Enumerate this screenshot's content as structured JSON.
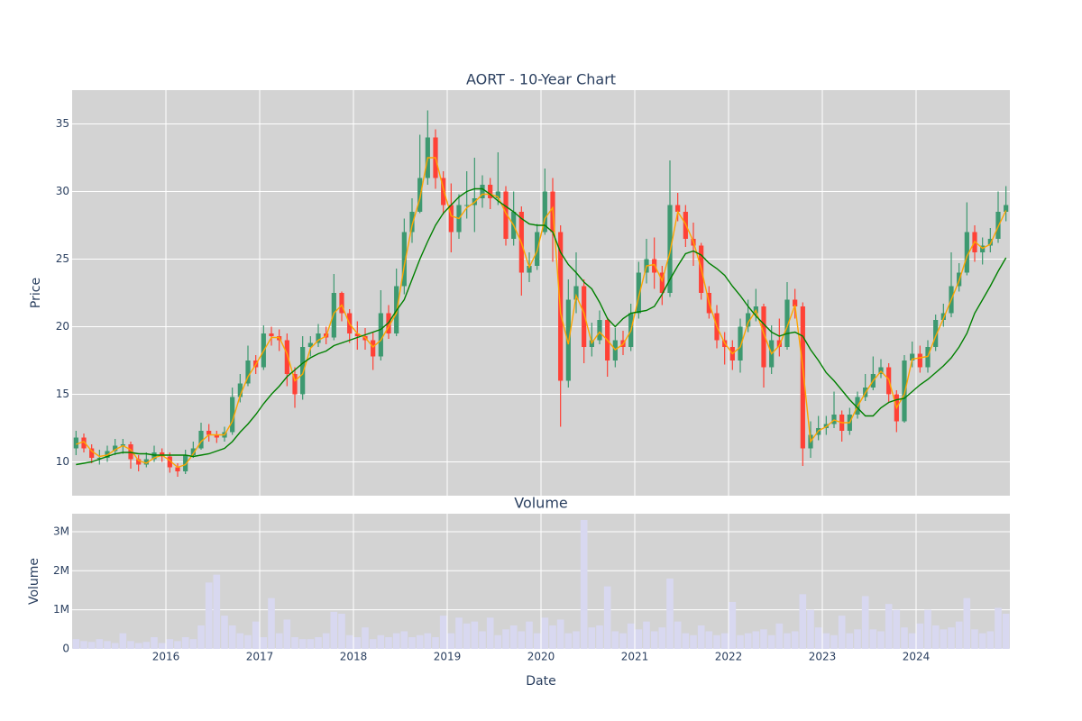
{
  "chart_data": [
    {
      "type": "candlestick",
      "title": "AORT - 10-Year Chart",
      "y_label": "Price",
      "ylim": [
        7.5,
        37.5
      ],
      "yticks": [
        10,
        15,
        20,
        25,
        30,
        35
      ],
      "grid": true,
      "increasing_color": "#3d9970",
      "decreasing_color": "#ff4136",
      "x": [
        "2015-01",
        "2015-02",
        "2015-03",
        "2015-04",
        "2015-05",
        "2015-06",
        "2015-07",
        "2015-08",
        "2015-09",
        "2015-10",
        "2015-11",
        "2015-12",
        "2016-01",
        "2016-02",
        "2016-03",
        "2016-04",
        "2016-05",
        "2016-06",
        "2016-07",
        "2016-08",
        "2016-09",
        "2016-10",
        "2016-11",
        "2016-12",
        "2017-01",
        "2017-02",
        "2017-03",
        "2017-04",
        "2017-05",
        "2017-06",
        "2017-07",
        "2017-08",
        "2017-09",
        "2017-10",
        "2017-11",
        "2017-12",
        "2018-01",
        "2018-02",
        "2018-03",
        "2018-04",
        "2018-05",
        "2018-06",
        "2018-07",
        "2018-08",
        "2018-09",
        "2018-10",
        "2018-11",
        "2018-12",
        "2019-01",
        "2019-02",
        "2019-03",
        "2019-04",
        "2019-05",
        "2019-06",
        "2019-07",
        "2019-08",
        "2019-09",
        "2019-10",
        "2019-11",
        "2019-12",
        "2020-01",
        "2020-02",
        "2020-03",
        "2020-04",
        "2020-05",
        "2020-06",
        "2020-07",
        "2020-08",
        "2020-09",
        "2020-10",
        "2020-11",
        "2020-12",
        "2021-01",
        "2021-02",
        "2021-03",
        "2021-04",
        "2021-05",
        "2021-06",
        "2021-07",
        "2021-08",
        "2021-09",
        "2021-10",
        "2021-11",
        "2021-12",
        "2022-01",
        "2022-02",
        "2022-03",
        "2022-04",
        "2022-05",
        "2022-06",
        "2022-07",
        "2022-08",
        "2022-09",
        "2022-10",
        "2022-11",
        "2022-12",
        "2023-01",
        "2023-02",
        "2023-03",
        "2023-04",
        "2023-05",
        "2023-06",
        "2023-07",
        "2023-08",
        "2023-09",
        "2023-10",
        "2023-11",
        "2023-12",
        "2024-01",
        "2024-02",
        "2024-03",
        "2024-04",
        "2024-05",
        "2024-06",
        "2024-07",
        "2024-08",
        "2024-09",
        "2024-10",
        "2024-11",
        "2024-12"
      ],
      "open": [
        11,
        11.8,
        11,
        10.3,
        10.3,
        10.8,
        11.2,
        11.3,
        10.2,
        9.8,
        10.2,
        10.7,
        10.4,
        9.6,
        9.3,
        10.5,
        11,
        12.3,
        12,
        11.8,
        12.2,
        14.8,
        15.8,
        17.5,
        17,
        19.5,
        19.3,
        19,
        16.5,
        15,
        18.5,
        18.8,
        19.5,
        19.2,
        22.5,
        21,
        19.5,
        19.3,
        19,
        17.8,
        21,
        19.5,
        23,
        27,
        28.5,
        31,
        34,
        31,
        29,
        27,
        29,
        29,
        29.5,
        30.5,
        29.5,
        30,
        26.5,
        28.5,
        24,
        24.5,
        27,
        30,
        27,
        16,
        22,
        23,
        18.5,
        19,
        20.5,
        17.5,
        19,
        18.5,
        21,
        24,
        25,
        24,
        22.5,
        29,
        28.5,
        26.5,
        26,
        22.5,
        21,
        19,
        18.5,
        17.5,
        20,
        21,
        21.5,
        17,
        19,
        18.5,
        22,
        21.5,
        11,
        12,
        12.5,
        12.8,
        13.5,
        12.3,
        13.5,
        14.8,
        15.5,
        16.5,
        17,
        15,
        13,
        17.5,
        18,
        17,
        18.5,
        20.5,
        21,
        23,
        24,
        27,
        25.5,
        26,
        26.5,
        28.5
      ],
      "high": [
        12.3,
        12.1,
        11.3,
        10.9,
        11.2,
        11.7,
        11.7,
        11.5,
        10.5,
        10.7,
        11.2,
        11,
        10.7,
        9.9,
        10.9,
        11.5,
        12.9,
        12.8,
        12.3,
        12.6,
        15.5,
        16.5,
        18.6,
        17.9,
        20.1,
        20,
        19.8,
        19.5,
        17,
        19.3,
        19.3,
        20.2,
        20,
        23.9,
        22.6,
        21.3,
        20.4,
        19.9,
        19.6,
        22.7,
        21.6,
        24.3,
        28,
        29.5,
        34.2,
        36,
        34.6,
        31.5,
        30.6,
        29.8,
        31.5,
        32.5,
        31.2,
        31,
        32.9,
        30.4,
        30,
        28.9,
        25.5,
        27.6,
        31.7,
        31,
        27.5,
        23.5,
        25.5,
        23.5,
        20.3,
        21.2,
        20.7,
        19.9,
        19.7,
        21.7,
        24.8,
        26.5,
        26.6,
        24.5,
        32.3,
        29.9,
        29,
        27.7,
        26.2,
        23,
        21.6,
        19.6,
        19,
        20.6,
        22,
        22.8,
        21.7,
        20.1,
        20.6,
        23.3,
        22.8,
        21.8,
        13,
        13.4,
        13.4,
        15.2,
        13.8,
        14,
        15.2,
        16.5,
        17.8,
        17.6,
        17.3,
        15.3,
        17.9,
        18.9,
        18.6,
        19,
        20.9,
        21.7,
        25.5,
        24.7,
        29.2,
        27.5,
        26.6,
        27.3,
        30,
        30.4
      ],
      "low": [
        10.5,
        10.7,
        9.9,
        9.8,
        10,
        10.5,
        10.6,
        9.5,
        9.3,
        9.6,
        10,
        10,
        9.2,
        8.9,
        9.1,
        10.3,
        10.9,
        11.5,
        11.4,
        11.5,
        12,
        14.4,
        15.6,
        16.5,
        16.8,
        18.6,
        18.2,
        15.6,
        14,
        14.6,
        17.8,
        18.5,
        18.7,
        19,
        20.4,
        18.8,
        18.3,
        18.3,
        16.8,
        17.5,
        19.1,
        19.3,
        22.4,
        26.2,
        28.4,
        30.5,
        30.2,
        28.3,
        25.5,
        26.5,
        28,
        27,
        28.8,
        28.7,
        29,
        26,
        26,
        22.3,
        23.3,
        24.2,
        26.8,
        24.8,
        12.6,
        15.5,
        21,
        17.3,
        17.8,
        18.7,
        16.3,
        17,
        17.9,
        18.2,
        20.6,
        23.2,
        22.8,
        21.6,
        22.2,
        27.8,
        25.9,
        24.5,
        22,
        20.6,
        18.4,
        17.2,
        16.8,
        16.6,
        19.6,
        20.4,
        15.5,
        16.5,
        17.8,
        18.3,
        20.6,
        9.7,
        10.3,
        11.6,
        12,
        12.5,
        11.5,
        12,
        13.2,
        14.5,
        15.3,
        16.2,
        14.4,
        12.2,
        12.9,
        17,
        16.6,
        16.6,
        18.2,
        20,
        20.7,
        22.6,
        23.8,
        24.8,
        24.6,
        25.5,
        26.2,
        27.8
      ],
      "close": [
        11.8,
        11,
        10.3,
        10.3,
        10.8,
        11.2,
        11.3,
        10.2,
        9.8,
        10.2,
        10.7,
        10.4,
        9.6,
        9.3,
        10.5,
        11,
        12.3,
        12,
        11.8,
        12.2,
        14.8,
        15.8,
        17.5,
        17,
        19.5,
        19.3,
        19,
        16.5,
        15,
        18.5,
        18.8,
        19.5,
        19.2,
        22.5,
        21,
        19.5,
        19.3,
        19,
        17.8,
        21,
        19.5,
        23,
        27,
        28.5,
        31,
        34,
        31,
        29,
        27,
        29,
        29,
        29.5,
        30.5,
        29.5,
        30,
        26.5,
        28.5,
        24,
        24.5,
        27,
        30,
        27,
        16,
        22,
        23,
        18.5,
        19,
        20.5,
        17.5,
        19,
        18.5,
        21,
        24,
        25,
        24,
        22.5,
        29,
        28.5,
        26.5,
        26,
        22.5,
        21,
        19,
        18.5,
        17.5,
        20,
        21,
        21.5,
        17,
        19,
        18.5,
        22,
        21.5,
        11,
        12,
        12.5,
        12.8,
        13.5,
        12.3,
        13.5,
        14.8,
        15.5,
        16.5,
        17,
        15,
        13,
        17.5,
        18,
        17,
        18.5,
        20.5,
        21,
        23,
        24,
        27,
        25.5,
        26,
        26.5,
        28.5,
        29
      ],
      "overlays": [
        {
          "color": "#ffa500",
          "values": [
            11.3,
            11.5,
            10.8,
            10.4,
            10.5,
            10.9,
            11.2,
            10.9,
            10.1,
            9.9,
            10.3,
            10.5,
            10.1,
            9.6,
            9.8,
            10.6,
            11.5,
            12,
            12,
            12,
            13,
            14.9,
            16.3,
            17.2,
            18.2,
            19.2,
            19.2,
            18,
            16,
            16.5,
            18.4,
            19,
            19.3,
            21,
            21.6,
            20.2,
            19.5,
            19.2,
            18.5,
            19,
            20,
            21,
            24.5,
            27.5,
            29.5,
            32.5,
            32.5,
            30.2,
            28.2,
            28,
            28.8,
            29.2,
            29.8,
            29.8,
            29.6,
            28.4,
            27.5,
            26.2,
            24.4,
            25.6,
            28,
            28.8,
            21,
            18.7,
            22.3,
            21,
            18.8,
            19.6,
            19,
            18.3,
            18.7,
            19.7,
            22.2,
            24.5,
            24.6,
            23.4,
            25.5,
            28.5,
            27.6,
            26.3,
            24.3,
            21.8,
            20,
            18.8,
            18,
            18.5,
            20.3,
            21.2,
            19.5,
            18,
            18.6,
            20,
            21.6,
            17,
            11.5,
            12.3,
            12.6,
            13.1,
            12.9,
            12.9,
            14.1,
            15.1,
            16,
            16.7,
            16.1,
            14,
            15,
            17.6,
            17.7,
            17.8,
            19.3,
            20.6,
            22,
            23.4,
            25.2,
            26.3,
            25.8,
            26.1,
            27.4,
            28.6
          ]
        },
        {
          "color": "#008000",
          "values": [
            9.8,
            9.9,
            10,
            10.2,
            10.4,
            10.6,
            10.7,
            10.7,
            10.6,
            10.6,
            10.5,
            10.5,
            10.5,
            10.5,
            10.5,
            10.4,
            10.5,
            10.6,
            10.8,
            11,
            11.5,
            12.2,
            12.8,
            13.5,
            14.3,
            15,
            15.6,
            16.3,
            16.8,
            17.3,
            17.7,
            18,
            18.2,
            18.6,
            18.8,
            19,
            19.2,
            19.4,
            19.6,
            19.8,
            20.3,
            21.2,
            22,
            23.5,
            25,
            26.3,
            27.5,
            28.4,
            29,
            29.6,
            30,
            30.2,
            30.2,
            29.8,
            29.3,
            28.9,
            28.5,
            28,
            27.6,
            27.5,
            27.5,
            27,
            25.5,
            24.6,
            24,
            23.3,
            22.8,
            21.8,
            20.6,
            20,
            20.6,
            21,
            21.1,
            21.2,
            21.5,
            22.4,
            23.5,
            24.5,
            25.4,
            25.6,
            25.3,
            24.7,
            24.3,
            23.8,
            23,
            22.3,
            21.5,
            20.8,
            20.2,
            19.6,
            19.3,
            19.5,
            19.6,
            19.3,
            18.3,
            17.5,
            16.6,
            16,
            15.3,
            14.6,
            14,
            13.4,
            13.4,
            14,
            14.4,
            14.6,
            14.7,
            15.2,
            15.7,
            16.1,
            16.6,
            17.1,
            17.7,
            18.5,
            19.5,
            21,
            22,
            23,
            24.1,
            25.1
          ]
        }
      ]
    },
    {
      "type": "bar",
      "title": "Volume",
      "y_label": "Volume",
      "x_label": "Date",
      "color": "#d8d8f0",
      "xlim": [
        2015,
        2025
      ],
      "xticks": [
        2016,
        2017,
        2018,
        2019,
        2020,
        2021,
        2022,
        2023,
        2024
      ],
      "ylim": [
        0,
        3460000
      ],
      "yticks": [
        0,
        {
          "value": 1000000,
          "label": "1M"
        },
        {
          "value": 2000000,
          "label": "2M"
        },
        {
          "value": 3000000,
          "label": "3M"
        }
      ],
      "grid": true,
      "values": [
        250000,
        200000,
        180000,
        250000,
        200000,
        150000,
        400000,
        200000,
        150000,
        180000,
        300000,
        150000,
        250000,
        200000,
        300000,
        250000,
        600000,
        1700000,
        1900000,
        850000,
        600000,
        400000,
        350000,
        700000,
        300000,
        1300000,
        400000,
        750000,
        300000,
        250000,
        250000,
        300000,
        400000,
        950000,
        900000,
        350000,
        300000,
        550000,
        250000,
        350000,
        300000,
        400000,
        450000,
        300000,
        350000,
        400000,
        300000,
        850000,
        400000,
        800000,
        650000,
        700000,
        450000,
        800000,
        350000,
        500000,
        600000,
        450000,
        700000,
        400000,
        800000,
        600000,
        750000,
        400000,
        450000,
        3300000,
        550000,
        600000,
        1600000,
        450000,
        400000,
        650000,
        500000,
        700000,
        450000,
        550000,
        1800000,
        700000,
        400000,
        350000,
        600000,
        450000,
        350000,
        400000,
        1200000,
        350000,
        400000,
        450000,
        500000,
        350000,
        650000,
        400000,
        450000,
        1400000,
        1000000,
        550000,
        400000,
        350000,
        850000,
        400000,
        500000,
        1350000,
        500000,
        450000,
        1150000,
        1000000,
        550000,
        400000,
        650000,
        1000000,
        600000,
        500000,
        550000,
        700000,
        1300000,
        500000,
        400000,
        450000,
        1050000,
        900000
      ]
    }
  ]
}
